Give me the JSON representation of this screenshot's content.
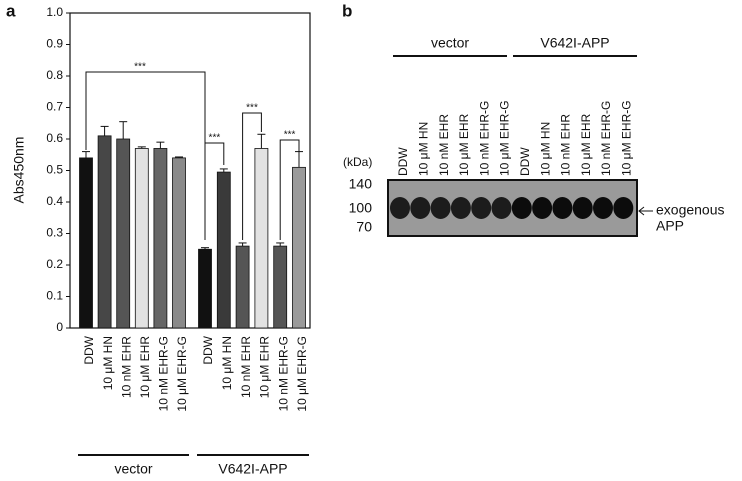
{
  "panel_labels": [
    "a",
    "b"
  ],
  "chart_data": {
    "type": "bar",
    "y_label": "Abs450nm",
    "categories": [
      "DDW",
      "10 μM HN",
      "10 nM EHR",
      "10 μM EHR",
      "10 nM EHR-G",
      "10 μM EHR-G",
      "DDW",
      "10 μM HN",
      "10 nM EHR",
      "10 μM EHR",
      "10 nM EHR-G",
      "10 μM EHR-G"
    ],
    "values": [
      0.54,
      0.61,
      0.6,
      0.57,
      0.57,
      0.54,
      0.25,
      0.495,
      0.26,
      0.57,
      0.26,
      0.51
    ],
    "errors": [
      0.02,
      0.03,
      0.055,
      0.005,
      0.02,
      0.003,
      0.005,
      0.01,
      0.01,
      0.045,
      0.01,
      0.05
    ],
    "colors": [
      "#111111",
      "#474747",
      "#555555",
      "#e2e2e2",
      "#666666",
      "#8a8a8a",
      "#111111",
      "#3a3a3a",
      "#555555",
      "#e2e2e2",
      "#555555",
      "#9a9a9a"
    ],
    "groups": [
      "vector",
      "V642I-APP"
    ],
    "annotations": [
      "***",
      "***",
      "***",
      "***"
    ],
    "ylim": [
      0,
      1
    ],
    "yticks": [
      0,
      0.1,
      0.2,
      0.3,
      0.4,
      0.5,
      0.6,
      0.7,
      0.8,
      0.9,
      {
        "value": 1,
        "label": "1.0"
      }
    ]
  },
  "blot": {
    "groups": [
      "vector",
      "V642I-APP"
    ],
    "lanes": [
      "DDW",
      "10 μM HN",
      "10 nM EHR",
      "10 μM EHR",
      "10 nM EHR-G",
      "10 μM EHR-G",
      "DDW",
      "10 μM HN",
      "10 nM EHR",
      "10 μM EHR",
      "10 nM EHR-G",
      "10 μM EHR-G"
    ],
    "unit": "(kDa)",
    "markers": [
      140,
      100,
      70
    ],
    "band_label": [
      "exogenous",
      "APP"
    ]
  }
}
